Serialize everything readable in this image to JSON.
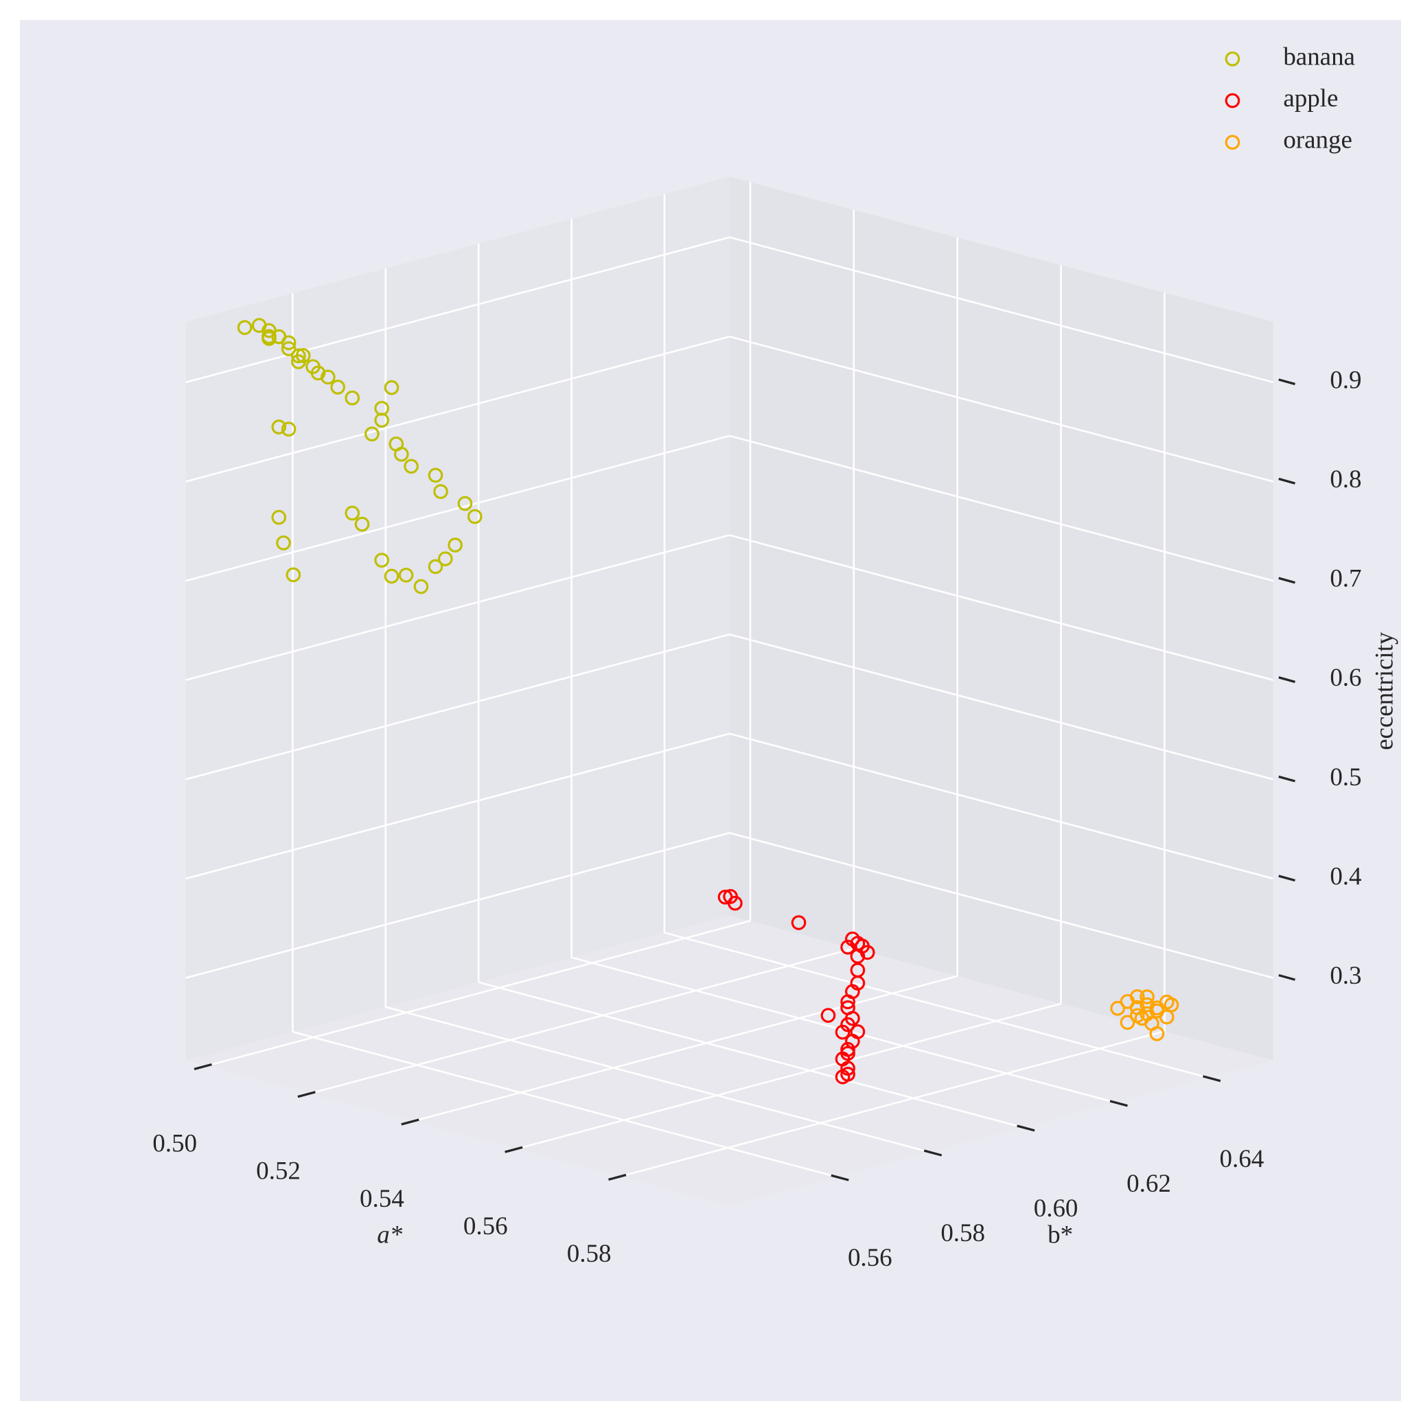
{
  "chart_data": {
    "type": "scatter3d",
    "xlabel": "a*",
    "ylabel": "b*",
    "zlabel": "eccentricity",
    "xlim": [
      0.496,
      0.601
    ],
    "ylim": [
      0.537,
      0.654
    ],
    "zlim": [
      0.217,
      0.961
    ],
    "xticks": [
      {
        "value": 0.5,
        "label": "0.50"
      },
      0.52,
      0.54,
      0.56,
      0.58
    ],
    "yticks": [
      0.56,
      0.58,
      {
        "value": 0.6,
        "label": "0.60"
      },
      0.62,
      0.64
    ],
    "zticks": [
      0.3,
      0.4,
      0.5,
      0.6,
      0.7,
      0.8,
      0.9
    ],
    "grid": true,
    "legend": "upper right",
    "marker": "hollow-circle",
    "series": [
      {
        "name": "banana",
        "color": "#bfbf00",
        "x": [
          0.502,
          0.503,
          0.504,
          0.504,
          0.504,
          0.505,
          0.505,
          0.506,
          0.506,
          0.507,
          0.507,
          0.507,
          0.508,
          0.509,
          0.51,
          0.511,
          0.512,
          0.516,
          0.515,
          0.515,
          0.514,
          0.516,
          0.517,
          0.518,
          0.52,
          0.521,
          0.523,
          0.524,
          0.505,
          0.506,
          0.505,
          0.505,
          0.506,
          0.512,
          0.513,
          0.515,
          0.516,
          0.517,
          0.519,
          0.52,
          0.521,
          0.522
        ],
        "y": [
          0.543,
          0.545,
          0.546,
          0.546,
          0.546,
          0.547,
          0.547,
          0.548,
          0.548,
          0.549,
          0.55,
          0.549,
          0.551,
          0.551,
          0.552,
          0.553,
          0.555,
          0.559,
          0.558,
          0.558,
          0.557,
          0.56,
          0.56,
          0.561,
          0.564,
          0.564,
          0.567,
          0.568,
          0.547,
          0.548,
          0.547,
          0.548,
          0.549,
          0.555,
          0.556,
          0.558,
          0.559,
          0.561,
          0.562,
          0.564,
          0.565,
          0.566
        ],
        "z": [
          0.956,
          0.957,
          0.952,
          0.946,
          0.944,
          0.946,
          0.946,
          0.94,
          0.934,
          0.927,
          0.926,
          0.921,
          0.915,
          0.91,
          0.906,
          0.896,
          0.884,
          0.895,
          0.874,
          0.862,
          0.848,
          0.837,
          0.828,
          0.816,
          0.806,
          0.791,
          0.778,
          0.765,
          0.855,
          0.853,
          0.764,
          0.737,
          0.705,
          0.768,
          0.757,
          0.721,
          0.705,
          0.705,
          0.695,
          0.714,
          0.722,
          0.736
        ]
      },
      {
        "name": "apple",
        "color": "#ff0000",
        "x": [
          0.558,
          0.559,
          0.559,
          0.565,
          0.57,
          0.571,
          0.57,
          0.571,
          0.572,
          0.571,
          0.571,
          0.571,
          0.57,
          0.57,
          0.57,
          0.568,
          0.57,
          0.57,
          0.571,
          0.569,
          0.57,
          0.57,
          0.57,
          0.569,
          0.57,
          0.57,
          0.569
        ],
        "y": [
          0.584,
          0.584,
          0.585,
          0.592,
          0.598,
          0.598,
          0.597,
          0.599,
          0.599,
          0.598,
          0.598,
          0.598,
          0.598,
          0.597,
          0.597,
          0.595,
          0.598,
          0.597,
          0.598,
          0.597,
          0.598,
          0.597,
          0.597,
          0.597,
          0.597,
          0.597,
          0.597
        ],
        "z": [
          0.409,
          0.411,
          0.403,
          0.383,
          0.366,
          0.363,
          0.359,
          0.359,
          0.354,
          0.35,
          0.336,
          0.323,
          0.313,
          0.304,
          0.298,
          0.29,
          0.286,
          0.281,
          0.274,
          0.272,
          0.263,
          0.256,
          0.252,
          0.245,
          0.237,
          0.231,
          0.227
        ]
      },
      {
        "name": "orange",
        "color": "#ffa500",
        "x": [
          0.588,
          0.589,
          0.59,
          0.59,
          0.591,
          0.591,
          0.592,
          0.592,
          0.593,
          0.593,
          0.589,
          0.59,
          0.591,
          0.592,
          0.591,
          0.59,
          0.593
        ],
        "y": [
          0.635,
          0.636,
          0.637,
          0.637,
          0.638,
          0.638,
          0.639,
          0.639,
          0.64,
          0.641,
          0.636,
          0.638,
          0.639,
          0.639,
          0.638,
          0.637,
          0.64
        ],
        "z": [
          0.275,
          0.282,
          0.276,
          0.287,
          0.279,
          0.287,
          0.276,
          0.273,
          0.267,
          0.278,
          0.261,
          0.264,
          0.259,
          0.25,
          0.27,
          0.268,
          0.282
        ]
      }
    ]
  }
}
